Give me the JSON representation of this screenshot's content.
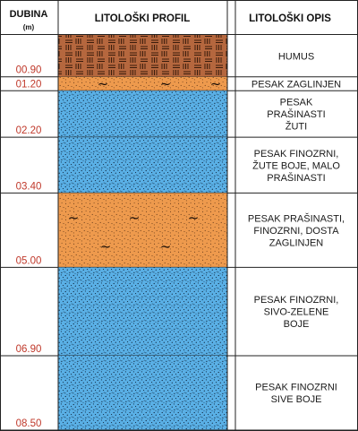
{
  "headers": {
    "depth": "DUBINA",
    "depth_unit": "(m)",
    "profile": "LITOLOŠKI PROFIL",
    "description": "LITOLOŠKI OPIS"
  },
  "colors": {
    "depth_label": "#c0392b",
    "humus": "#b5673e",
    "clayey_sand": "#ee9a4d",
    "sand": "#5ab0e6",
    "line": "#222222"
  },
  "layers": [
    {
      "top": 0.0,
      "bottom": 0.9,
      "depth_label": "00.90",
      "lithology": "humus",
      "description": [
        "HUMUS"
      ]
    },
    {
      "top": 0.9,
      "bottom": 1.2,
      "depth_label": "01.20",
      "lithology": "clayey-sand",
      "description": [
        "PESAK ZAGLINJEN"
      ]
    },
    {
      "top": 1.2,
      "bottom": 2.2,
      "depth_label": "02.20",
      "lithology": "sand",
      "description": [
        "PESAK",
        "PRAŠINASTI",
        "ŽUTI"
      ]
    },
    {
      "top": 2.2,
      "bottom": 3.4,
      "depth_label": "03.40",
      "lithology": "sand",
      "description": [
        "PESAK FINOZRNI,",
        "ŽUTE BOJE, MALO",
        "PRAŠINASTI"
      ]
    },
    {
      "top": 3.4,
      "bottom": 5.0,
      "depth_label": "05.00",
      "lithology": "clayey-sand",
      "description": [
        "PESAK PRAŠINASTI,",
        "FINOZRNI, DOSTA",
        "ZAGLINJEN"
      ]
    },
    {
      "top": 5.0,
      "bottom": 6.9,
      "depth_label": "06.90",
      "lithology": "sand",
      "description": [
        "PESAK FINOZRNI,",
        "SIVO-ZELENE",
        "BOJE"
      ]
    },
    {
      "top": 6.9,
      "bottom": 8.5,
      "depth_label": "08.50",
      "lithology": "sand",
      "description": [
        "PESAK FINOZRNI",
        "SIVE BOJE"
      ]
    }
  ]
}
